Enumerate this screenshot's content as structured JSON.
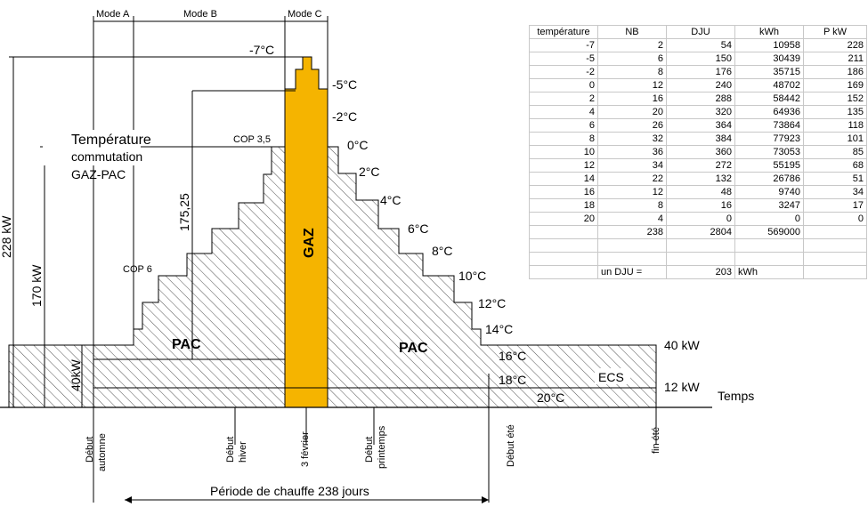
{
  "modes": [
    "Mode A",
    "Mode B",
    "Mode C"
  ],
  "power_axes": {
    "p228": "228 kW",
    "p170": "170 kW",
    "p40": "40kW",
    "p175": "175,25"
  },
  "temps": [
    "-7°C",
    "-5°C",
    "-2°C",
    "0°C",
    "2°C",
    "4°C",
    "6°C",
    "8°C",
    "10°C",
    "12°C",
    "14°C",
    "16°C",
    "18°C",
    "20°C"
  ],
  "labels": {
    "commutation_line1": "Température",
    "commutation_line2": "commutation",
    "commutation_line3": "GAZ-PAC",
    "cop35": "COP 3,5",
    "cop6": "COP 6",
    "gaz": "GAZ",
    "pac_left": "PAC",
    "pac_right": "PAC",
    "ecs": "ECS",
    "kw40": "40 kW",
    "kw12": "12 kW",
    "temps": "Temps",
    "period": "Période de chauffe 238 jours"
  },
  "timeline": {
    "debut_automne_1": "Début",
    "debut_automne_2": "automne",
    "debut_hiver_1": "Début",
    "debut_hiver_2": "hiver",
    "fevrier": "3 février",
    "debut_printemps_1": "Début",
    "debut_printemps_2": "printemps",
    "debut_ete": "Début été",
    "fin_ete": "fin été"
  },
  "table": {
    "headers": [
      "température",
      "NB",
      "DJU",
      "kWh",
      "P kW"
    ],
    "rows": [
      [
        "-7",
        "2",
        "54",
        "10958",
        "228"
      ],
      [
        "-5",
        "6",
        "150",
        "30439",
        "211"
      ],
      [
        "-2",
        "8",
        "176",
        "35715",
        "186"
      ],
      [
        "0",
        "12",
        "240",
        "48702",
        "169"
      ],
      [
        "2",
        "16",
        "288",
        "58442",
        "152"
      ],
      [
        "4",
        "20",
        "320",
        "64936",
        "135"
      ],
      [
        "6",
        "26",
        "364",
        "73864",
        "118"
      ],
      [
        "8",
        "32",
        "384",
        "77923",
        "101"
      ],
      [
        "10",
        "36",
        "360",
        "73053",
        "85"
      ],
      [
        "12",
        "34",
        "272",
        "55195",
        "68"
      ],
      [
        "14",
        "22",
        "132",
        "26786",
        "51"
      ],
      [
        "16",
        "12",
        "48",
        "9740",
        "34"
      ],
      [
        "18",
        "8",
        "16",
        "3247",
        "17"
      ],
      [
        "20",
        "4",
        "0",
        "0",
        "0"
      ]
    ],
    "totals": [
      "",
      "238",
      "2804",
      "569000",
      ""
    ],
    "dju_label": "un DJU =",
    "dju_value": "203",
    "dju_unit": "kWh"
  },
  "colors": {
    "gaz": "#f5b400",
    "line": "#000000",
    "hatch": "#444444",
    "grid": "#c8c8c8"
  }
}
